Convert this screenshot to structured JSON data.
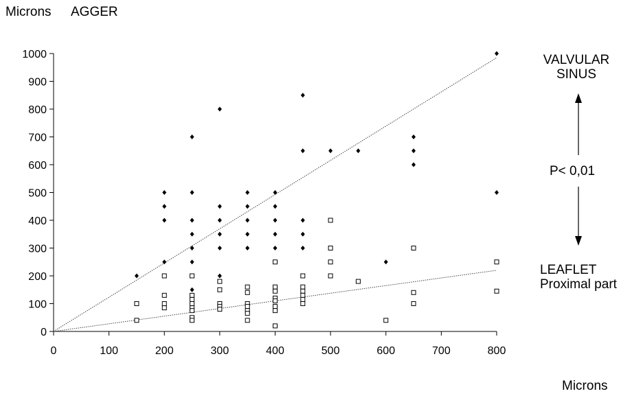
{
  "chart_data": {
    "type": "scatter",
    "title": "AGGER",
    "ylabel": "Microns",
    "xlabel": "Microns",
    "xlim": [
      0,
      800
    ],
    "ylim": [
      0,
      1000
    ],
    "x_ticks": [
      0,
      100,
      200,
      300,
      400,
      500,
      600,
      700,
      800
    ],
    "y_ticks": [
      0,
      100,
      200,
      300,
      400,
      500,
      600,
      700,
      800,
      900,
      1000
    ],
    "grid": false,
    "annotations": {
      "top": [
        "VALVULAR",
        "SINUS"
      ],
      "p_value": "P< 0,01",
      "bottom": [
        "LEAFLET",
        "Proximal part"
      ]
    },
    "series": [
      {
        "marker": "filled-diamond",
        "color": "#000000",
        "trendline": {
          "x": [
            0,
            800
          ],
          "y": [
            0,
            985
          ]
        },
        "points": [
          [
            150,
            200
          ],
          [
            200,
            250
          ],
          [
            200,
            400
          ],
          [
            200,
            450
          ],
          [
            200,
            500
          ],
          [
            250,
            150
          ],
          [
            250,
            250
          ],
          [
            250,
            300
          ],
          [
            250,
            350
          ],
          [
            250,
            400
          ],
          [
            250,
            500
          ],
          [
            250,
            700
          ],
          [
            300,
            200
          ],
          [
            300,
            300
          ],
          [
            300,
            350
          ],
          [
            300,
            400
          ],
          [
            300,
            450
          ],
          [
            300,
            800
          ],
          [
            350,
            300
          ],
          [
            350,
            350
          ],
          [
            350,
            400
          ],
          [
            350,
            450
          ],
          [
            350,
            500
          ],
          [
            400,
            300
          ],
          [
            400,
            350
          ],
          [
            400,
            400
          ],
          [
            400,
            450
          ],
          [
            400,
            500
          ],
          [
            450,
            300
          ],
          [
            450,
            350
          ],
          [
            450,
            400
          ],
          [
            450,
            650
          ],
          [
            450,
            850
          ],
          [
            500,
            250
          ],
          [
            500,
            650
          ],
          [
            550,
            650
          ],
          [
            600,
            250
          ],
          [
            650,
            600
          ],
          [
            650,
            650
          ],
          [
            650,
            700
          ],
          [
            800,
            500
          ],
          [
            800,
            1000
          ]
        ]
      },
      {
        "marker": "open-square",
        "color": "#000000",
        "trendline": {
          "x": [
            0,
            800
          ],
          "y": [
            0,
            220
          ]
        },
        "points": [
          [
            150,
            100
          ],
          [
            150,
            40
          ],
          [
            200,
            200
          ],
          [
            200,
            130
          ],
          [
            200,
            100
          ],
          [
            200,
            85
          ],
          [
            250,
            200
          ],
          [
            250,
            130
          ],
          [
            250,
            115
          ],
          [
            250,
            100
          ],
          [
            250,
            85
          ],
          [
            250,
            75
          ],
          [
            250,
            50
          ],
          [
            250,
            40
          ],
          [
            300,
            180
          ],
          [
            300,
            150
          ],
          [
            300,
            100
          ],
          [
            300,
            90
          ],
          [
            300,
            80
          ],
          [
            350,
            160
          ],
          [
            350,
            140
          ],
          [
            350,
            100
          ],
          [
            350,
            90
          ],
          [
            350,
            75
          ],
          [
            350,
            65
          ],
          [
            350,
            40
          ],
          [
            400,
            250
          ],
          [
            400,
            160
          ],
          [
            400,
            145
          ],
          [
            400,
            120
          ],
          [
            400,
            110
          ],
          [
            400,
            90
          ],
          [
            400,
            75
          ],
          [
            400,
            20
          ],
          [
            450,
            200
          ],
          [
            450,
            160
          ],
          [
            450,
            145
          ],
          [
            450,
            130
          ],
          [
            450,
            115
          ],
          [
            450,
            100
          ],
          [
            500,
            400
          ],
          [
            500,
            300
          ],
          [
            500,
            250
          ],
          [
            500,
            200
          ],
          [
            550,
            180
          ],
          [
            600,
            40
          ],
          [
            650,
            300
          ],
          [
            650,
            140
          ],
          [
            650,
            100
          ],
          [
            800,
            250
          ],
          [
            800,
            145
          ]
        ]
      }
    ]
  }
}
